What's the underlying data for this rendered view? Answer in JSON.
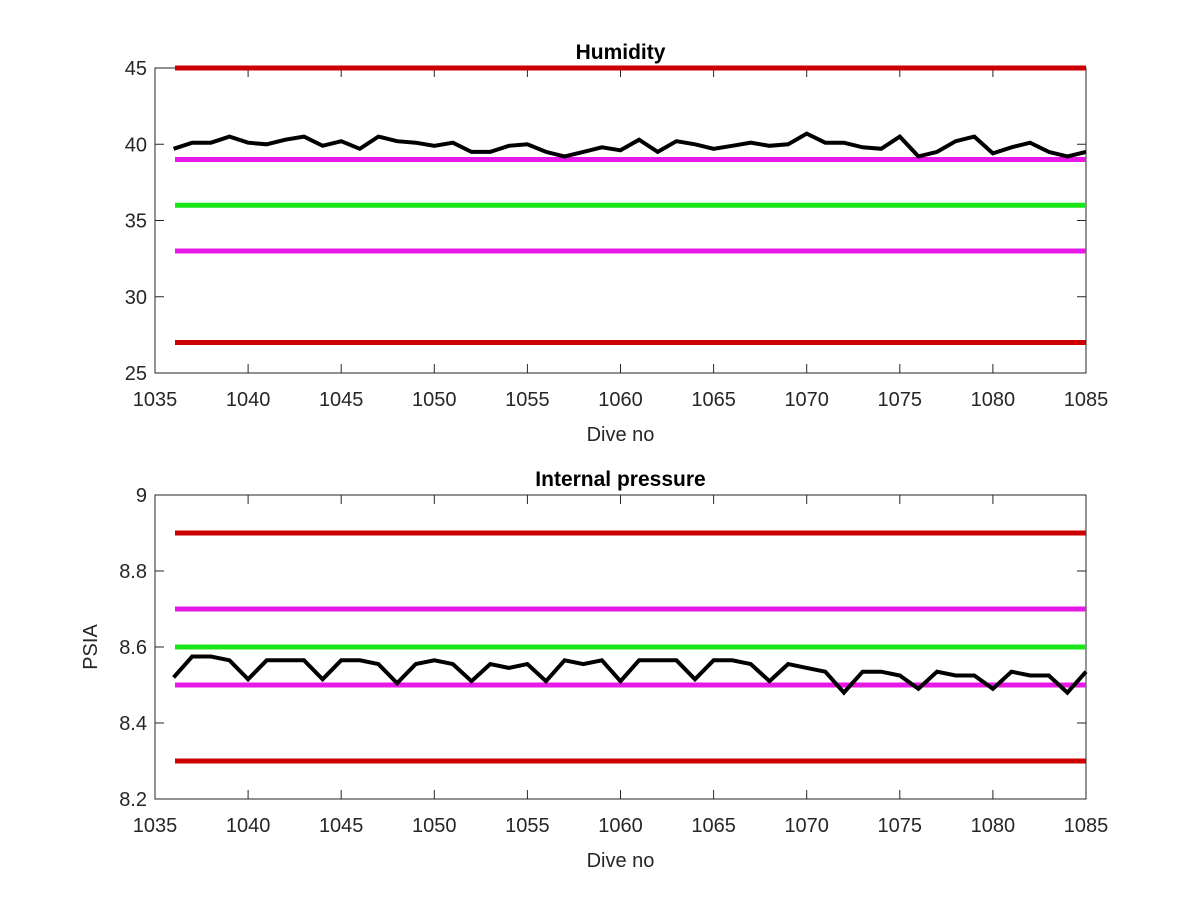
{
  "figure": {
    "background": "#ffffff"
  },
  "chart_data": [
    {
      "type": "line",
      "title": "Humidity",
      "xlabel": "Dive no",
      "ylabel": "",
      "xlim": [
        1035,
        1085
      ],
      "ylim": [
        25,
        45
      ],
      "xticks": [
        1035,
        1040,
        1045,
        1050,
        1055,
        1060,
        1065,
        1070,
        1075,
        1080,
        1085
      ],
      "yticks": [
        25,
        30,
        35,
        40,
        45
      ],
      "xtick_labels": [
        "1035",
        "1040",
        "1045",
        "1050",
        "1055",
        "1060",
        "1065",
        "1070",
        "1075",
        "1080",
        "1085"
      ],
      "ytick_labels": [
        "25",
        "30",
        "35",
        "40",
        "45"
      ],
      "grid": false,
      "legend": "none",
      "reference_lines": [
        {
          "y": 45,
          "color": "#cc0000"
        },
        {
          "y": 39,
          "color": "#e619e6"
        },
        {
          "y": 36,
          "color": "#19e619"
        },
        {
          "y": 33,
          "color": "#e619e6"
        },
        {
          "y": 27,
          "color": "#cc0000"
        }
      ],
      "series": [
        {
          "color": "#000000",
          "x": [
            1036,
            1037,
            1038,
            1039,
            1040,
            1041,
            1042,
            1043,
            1044,
            1045,
            1046,
            1047,
            1048,
            1049,
            1050,
            1051,
            1052,
            1053,
            1054,
            1055,
            1056,
            1057,
            1058,
            1059,
            1060,
            1061,
            1062,
            1063,
            1064,
            1065,
            1066,
            1067,
            1068,
            1069,
            1070,
            1071,
            1072,
            1073,
            1074,
            1075,
            1076,
            1077,
            1078,
            1079,
            1080,
            1081,
            1082,
            1083,
            1084,
            1085
          ],
          "y": [
            39.7,
            40.1,
            40.1,
            40.5,
            40.1,
            40.0,
            40.3,
            40.5,
            39.9,
            40.2,
            39.7,
            40.5,
            40.2,
            40.1,
            39.9,
            40.1,
            39.5,
            39.5,
            39.9,
            40.0,
            39.5,
            39.2,
            39.5,
            39.8,
            39.6,
            40.3,
            39.5,
            40.2,
            40.0,
            39.7,
            39.9,
            40.1,
            39.9,
            40.0,
            40.7,
            40.1,
            40.1,
            39.8,
            39.7,
            40.5,
            39.2,
            39.5,
            40.2,
            40.5,
            39.4,
            39.8,
            40.1,
            39.5,
            39.2,
            39.5
          ]
        }
      ]
    },
    {
      "type": "line",
      "title": "Internal pressure",
      "xlabel": "Dive no",
      "ylabel": "PSIA",
      "xlim": [
        1035,
        1085
      ],
      "ylim": [
        8.2,
        9
      ],
      "xticks": [
        1035,
        1040,
        1045,
        1050,
        1055,
        1060,
        1065,
        1070,
        1075,
        1080,
        1085
      ],
      "yticks": [
        8.2,
        8.4,
        8.6,
        8.8,
        9
      ],
      "xtick_labels": [
        "1035",
        "1040",
        "1045",
        "1050",
        "1055",
        "1060",
        "1065",
        "1070",
        "1075",
        "1080",
        "1085"
      ],
      "ytick_labels": [
        "8.2",
        "8.4",
        "8.6",
        "8.8",
        "9"
      ],
      "grid": false,
      "legend": "none",
      "reference_lines": [
        {
          "y": 8.9,
          "color": "#cc0000"
        },
        {
          "y": 8.7,
          "color": "#e619e6"
        },
        {
          "y": 8.6,
          "color": "#19e619"
        },
        {
          "y": 8.5,
          "color": "#e619e6"
        },
        {
          "y": 8.3,
          "color": "#cc0000"
        }
      ],
      "series": [
        {
          "color": "#000000",
          "x": [
            1036,
            1037,
            1038,
            1039,
            1040,
            1041,
            1042,
            1043,
            1044,
            1045,
            1046,
            1047,
            1048,
            1049,
            1050,
            1051,
            1052,
            1053,
            1054,
            1055,
            1056,
            1057,
            1058,
            1059,
            1060,
            1061,
            1062,
            1063,
            1064,
            1065,
            1066,
            1067,
            1068,
            1069,
            1070,
            1071,
            1072,
            1073,
            1074,
            1075,
            1076,
            1077,
            1078,
            1079,
            1080,
            1081,
            1082,
            1083,
            1084,
            1085
          ],
          "y": [
            8.52,
            8.575,
            8.575,
            8.565,
            8.515,
            8.565,
            8.565,
            8.565,
            8.515,
            8.565,
            8.565,
            8.555,
            8.505,
            8.555,
            8.565,
            8.555,
            8.51,
            8.555,
            8.545,
            8.555,
            8.51,
            8.565,
            8.555,
            8.565,
            8.51,
            8.565,
            8.565,
            8.565,
            8.515,
            8.565,
            8.565,
            8.555,
            8.51,
            8.555,
            8.545,
            8.535,
            8.48,
            8.535,
            8.535,
            8.525,
            8.49,
            8.535,
            8.525,
            8.525,
            8.49,
            8.535,
            8.525,
            8.525,
            8.48,
            8.535
          ]
        }
      ]
    }
  ]
}
